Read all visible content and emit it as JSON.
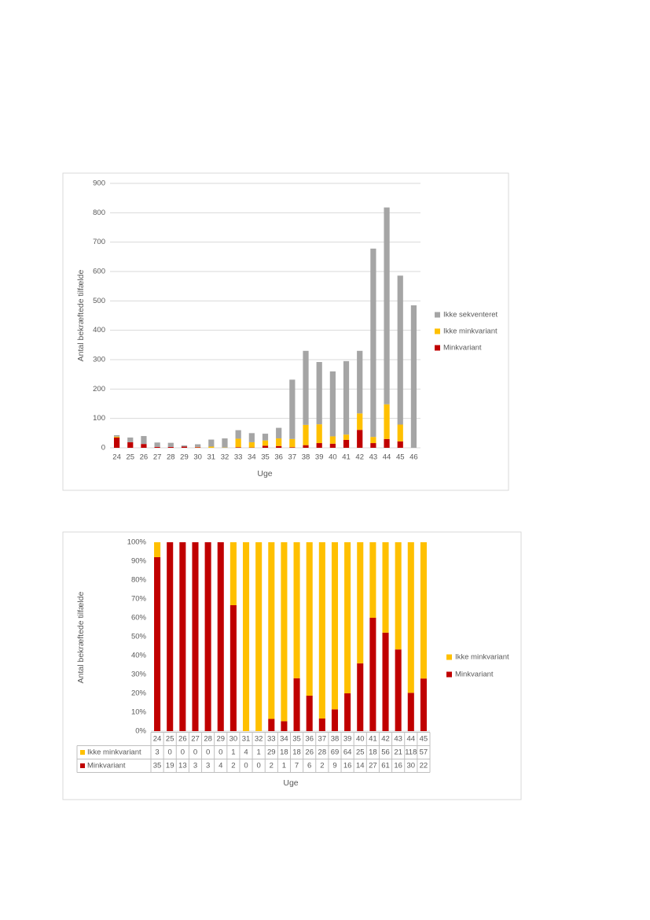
{
  "chart_data": [
    {
      "type": "bar",
      "stacking": "normal",
      "y_label": "Antal bekræftede tilfælde",
      "x_label": "Uge",
      "categories": [
        "24",
        "25",
        "26",
        "27",
        "28",
        "29",
        "30",
        "31",
        "32",
        "33",
        "34",
        "35",
        "36",
        "37",
        "38",
        "39",
        "40",
        "41",
        "42",
        "43",
        "44",
        "45",
        "46"
      ],
      "series": [
        {
          "name": "Minkvariant",
          "color": "#c00000",
          "values": [
            35,
            19,
            13,
            3,
            3,
            4,
            2,
            0,
            0,
            2,
            1,
            7,
            6,
            2,
            9,
            16,
            14,
            27,
            61,
            16,
            30,
            22,
            0
          ]
        },
        {
          "name": "Ikke minkvariant",
          "color": "#ffc000",
          "values": [
            3,
            0,
            0,
            0,
            0,
            0,
            1,
            4,
            1,
            29,
            18,
            18,
            26,
            28,
            69,
            64,
            25,
            18,
            56,
            21,
            118,
            57,
            0
          ]
        },
        {
          "name": "Ikke sekventeret",
          "color": "#a5a5a5",
          "values": [
            5,
            16,
            27,
            15,
            14,
            4,
            9,
            24,
            31,
            29,
            31,
            23,
            36,
            202,
            252,
            212,
            221,
            250,
            213,
            641,
            670,
            507,
            485
          ]
        }
      ],
      "ylim": [
        0,
        900
      ],
      "yticks": [
        0,
        100,
        200,
        300,
        400,
        500,
        600,
        700,
        800,
        900
      ],
      "grid": true,
      "legend": "right"
    },
    {
      "type": "bar",
      "stacking": "percent",
      "data_table": true,
      "y_label": "Antal bekræftede tilfælde",
      "x_label": "Uge",
      "categories": [
        "24",
        "25",
        "26",
        "27",
        "28",
        "29",
        "30",
        "31",
        "32",
        "33",
        "34",
        "35",
        "36",
        "37",
        "38",
        "39",
        "40",
        "41",
        "42",
        "43",
        "44",
        "45"
      ],
      "series": [
        {
          "name": "Minkvariant",
          "color": "#c00000",
          "values": [
            35,
            19,
            13,
            3,
            3,
            4,
            2,
            0,
            0,
            2,
            1,
            7,
            6,
            2,
            9,
            16,
            14,
            27,
            61,
            16,
            30,
            22
          ]
        },
        {
          "name": "Ikke minkvariant",
          "color": "#ffc000",
          "values": [
            3,
            0,
            0,
            0,
            0,
            0,
            1,
            4,
            1,
            29,
            18,
            18,
            26,
            28,
            69,
            64,
            25,
            18,
            56,
            21,
            118,
            57
          ]
        }
      ],
      "ylim": [
        0,
        100
      ],
      "yticks": [
        {
          "value": 0,
          "label": "0%"
        },
        {
          "value": 10,
          "label": "10%"
        },
        {
          "value": 20,
          "label": "20%"
        },
        {
          "value": 30,
          "label": "30%"
        },
        {
          "value": 40,
          "label": "40%"
        },
        {
          "value": 50,
          "label": "50%"
        },
        {
          "value": 60,
          "label": "60%"
        },
        {
          "value": 70,
          "label": "70%"
        },
        {
          "value": 80,
          "label": "80%"
        },
        {
          "value": 90,
          "label": "90%"
        },
        {
          "value": 100,
          "label": "100%"
        }
      ],
      "grid": false,
      "legend": "right"
    }
  ]
}
